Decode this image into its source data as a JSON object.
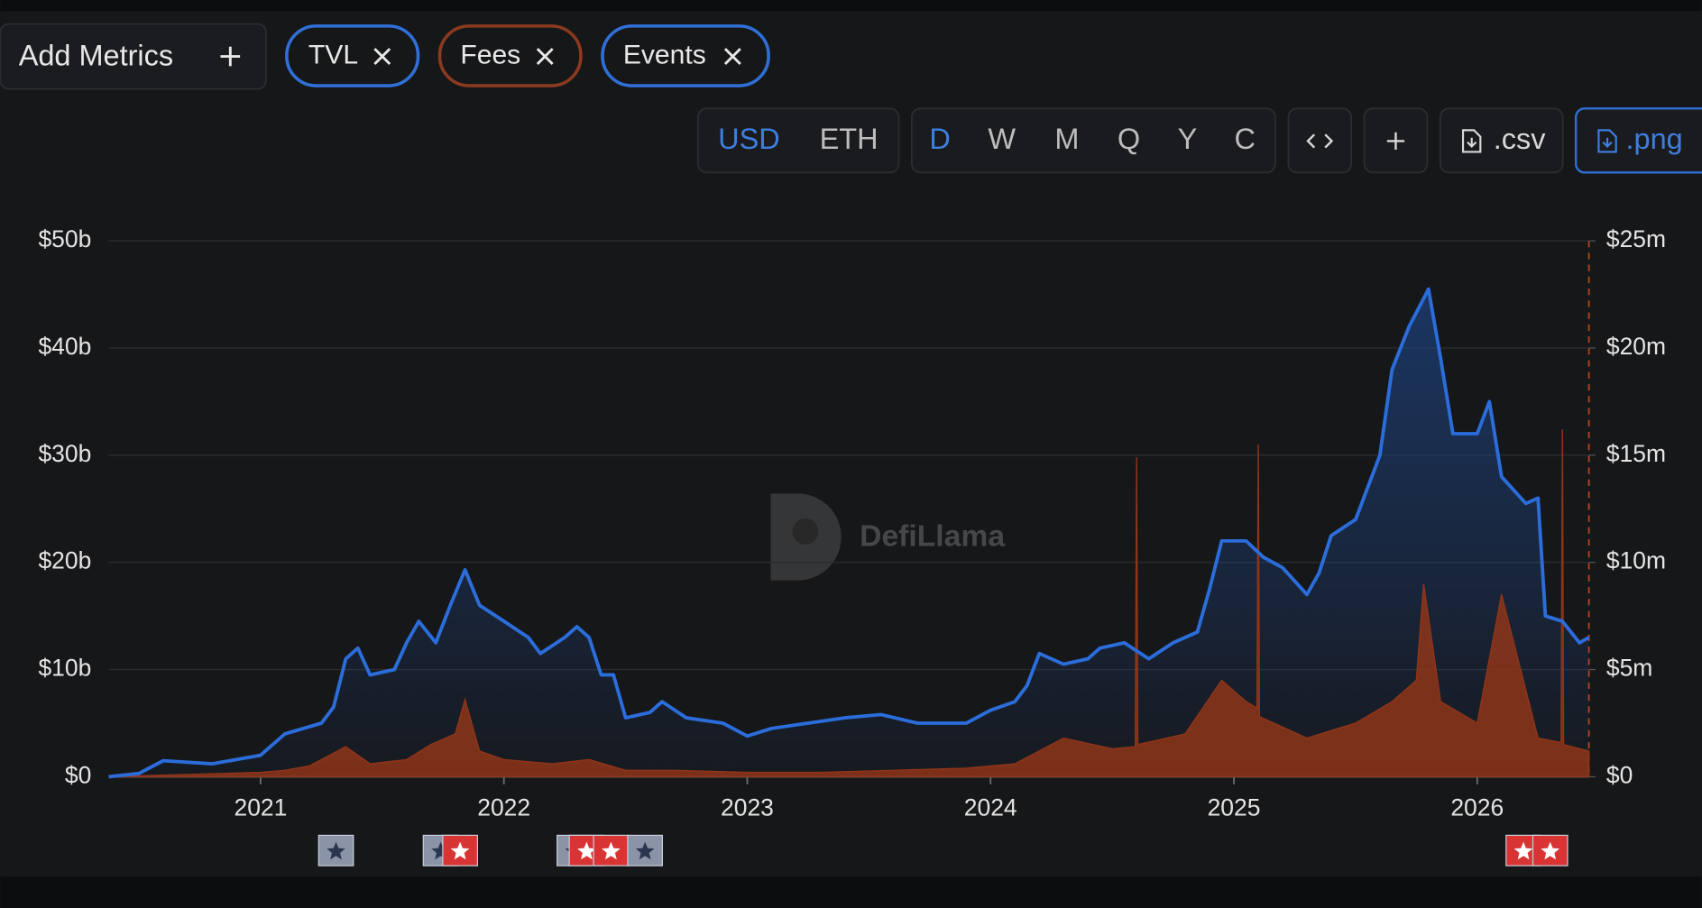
{
  "ui": {
    "add_metrics": "Add Metrics",
    "events_label": "Events",
    "currency": [
      "USD",
      "ETH"
    ],
    "periods": [
      "D",
      "W",
      "M",
      "Q",
      "Y",
      "C"
    ],
    "csv": ".csv",
    "png": ".png",
    "watermark": "DefiLlama"
  },
  "chart_data": {
    "type": "line",
    "xlim": [
      2020.376,
      2026.459
    ],
    "xticks": [
      2021,
      2022,
      2023,
      2024,
      2025,
      2026
    ],
    "ylim": [
      0,
      50
    ],
    "yticks": [
      {
        "value": 0,
        "label": "$0"
      },
      {
        "value": 10,
        "label": "$10b"
      },
      {
        "value": 20,
        "label": "$20b"
      },
      {
        "value": 30,
        "label": "$30b"
      },
      {
        "value": 40,
        "label": "$40b"
      },
      {
        "value": 50,
        "label": "$50b"
      }
    ],
    "y2lim": [
      0,
      25
    ],
    "y2ticks": [
      {
        "value": 0,
        "label": "$0"
      },
      {
        "value": 5,
        "label": "$5m"
      },
      {
        "value": 10,
        "label": "$10m"
      },
      {
        "value": 15,
        "label": "$15m"
      },
      {
        "value": 20,
        "label": "$20m"
      },
      {
        "value": 25,
        "label": "$25m"
      }
    ],
    "grid": true,
    "series": [
      {
        "name": "TVL",
        "color": "#2b6ddb",
        "x": [
          2020.376,
          2020.5,
          2020.6,
          2020.8,
          2021.0,
          2021.1,
          2021.25,
          2021.3,
          2021.35,
          2021.4,
          2021.45,
          2021.55,
          2021.6,
          2021.65,
          2021.72,
          2021.78,
          2021.84,
          2021.9,
          2022.0,
          2022.1,
          2022.15,
          2022.25,
          2022.3,
          2022.35,
          2022.4,
          2022.45,
          2022.5,
          2022.6,
          2022.65,
          2022.75,
          2022.9,
          2023.0,
          2023.1,
          2023.25,
          2023.4,
          2023.55,
          2023.7,
          2023.9,
          2024.0,
          2024.1,
          2024.15,
          2024.2,
          2024.3,
          2024.4,
          2024.45,
          2024.55,
          2024.65,
          2024.75,
          2024.85,
          2024.9,
          2024.95,
          2025.05,
          2025.12,
          2025.2,
          2025.3,
          2025.35,
          2025.4,
          2025.5,
          2025.6,
          2025.65,
          2025.72,
          2025.8,
          2025.85,
          2025.9,
          2026.0,
          2026.05,
          2026.1,
          2026.2,
          2026.25,
          2026.28,
          2026.35,
          2026.42,
          2026.459
        ],
        "values": [
          0,
          0.3,
          1.5,
          1.2,
          2,
          4,
          5,
          6.5,
          11,
          12,
          9.5,
          10,
          12.5,
          14.5,
          12.5,
          16,
          19.3,
          16,
          14.5,
          13,
          11.5,
          13,
          14,
          13,
          9.5,
          9.5,
          5.5,
          6,
          7,
          5.5,
          5,
          3.8,
          4.5,
          5,
          5.5,
          5.8,
          5,
          5,
          6.2,
          7,
          8.5,
          11.5,
          10.5,
          11,
          12,
          12.5,
          11,
          12.5,
          13.5,
          17.5,
          22,
          22,
          20.5,
          19.5,
          17,
          19,
          22.5,
          24,
          30,
          38,
          42,
          45.5,
          39,
          32,
          32,
          35,
          28,
          25.5,
          26,
          15,
          14.5,
          12.5,
          13
        ]
      },
      {
        "name": "Fees",
        "color": "#8e3519",
        "axis": "y2",
        "x": [
          2020.376,
          2021.0,
          2021.1,
          2021.2,
          2021.35,
          2021.45,
          2021.6,
          2021.7,
          2021.8,
          2021.84,
          2021.9,
          2022.0,
          2022.2,
          2022.35,
          2022.5,
          2022.7,
          2023.0,
          2023.3,
          2023.6,
          2023.9,
          2024.1,
          2024.2,
          2024.3,
          2024.5,
          2024.595,
          2024.6,
          2024.605,
          2024.8,
          2024.95,
          2025.05,
          2025.095,
          2025.1,
          2025.105,
          2025.3,
          2025.5,
          2025.65,
          2025.75,
          2025.78,
          2025.85,
          2026.0,
          2026.1,
          2026.25,
          2026.345,
          2026.35,
          2026.355,
          2026.459
        ],
        "values": [
          0,
          0.2,
          0.3,
          0.5,
          1.4,
          0.6,
          0.8,
          1.5,
          2,
          3.6,
          1.2,
          0.8,
          0.6,
          0.8,
          0.3,
          0.3,
          0.2,
          0.2,
          0.3,
          0.4,
          0.6,
          1.2,
          1.8,
          1.3,
          1.4,
          14.9,
          1.5,
          2,
          4.5,
          3.5,
          3.2,
          15.5,
          2.8,
          1.8,
          2.5,
          3.5,
          4.5,
          9,
          3.5,
          2.5,
          8.5,
          1.8,
          1.6,
          16.2,
          1.5,
          1.2
        ]
      }
    ],
    "events": [
      {
        "x": 2021.31,
        "color": "#8a94a6"
      },
      {
        "x": 2021.74,
        "color": "#8a94a6"
      },
      {
        "x": 2021.82,
        "color": "#d93434"
      },
      {
        "x": 2022.29,
        "color": "#8a94a6"
      },
      {
        "x": 2022.34,
        "color": "#d93434"
      },
      {
        "x": 2022.44,
        "color": "#d93434"
      },
      {
        "x": 2022.58,
        "color": "#8a94a6"
      },
      {
        "x": 2026.19,
        "color": "#d93434"
      },
      {
        "x": 2026.3,
        "color": "#d93434"
      }
    ]
  }
}
